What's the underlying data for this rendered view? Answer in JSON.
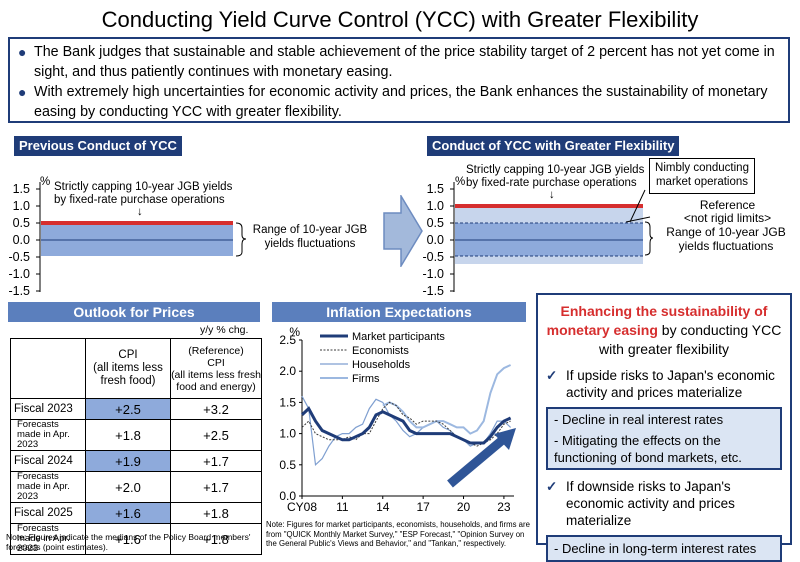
{
  "title": "Conducting Yield Curve Control (YCC) with Greater Flexibility",
  "bullets": [
    "The Bank judges that sustainable and stable achievement of the price stability target of 2 percent has not yet come in sight, and thus patiently continues with monetary easing.",
    "With extremely high uncertainties for economic activity and prices, the Bank enhances the sustainability of monetary easing by conducting YCC with greater flexibility."
  ],
  "previous": {
    "header": "Previous Conduct of YCC",
    "unit": "%",
    "yticks": [
      "1.5",
      "1.0",
      "0.5",
      "0.0",
      "-0.5",
      "-1.0",
      "-1.5"
    ],
    "cap_note_1": "Strictly capping 10-year JGB yields",
    "cap_note_2": "by fixed-rate purchase operations",
    "arrow": "↓",
    "range_1": "Range of 10-year JGB",
    "range_2": "yields fluctuations"
  },
  "new": {
    "header": "Conduct of YCC with Greater Flexibility",
    "unit": "%",
    "yticks": [
      "1.5",
      "1.0",
      "0.5",
      "0.0",
      "-0.5",
      "-1.0",
      "-1.5"
    ],
    "cap_note_1": "Strictly capping 10-year JGB yields",
    "cap_note_2": "by fixed-rate purchase operations",
    "arrow": "↓",
    "nimbly_1": "Nimbly conducting",
    "nimbly_2": "market operations",
    "reference_1": "Reference",
    "reference_2": "<not rigid limits>",
    "range_1": "Range of 10-year JGB",
    "range_2": "yields fluctuations"
  },
  "outlook": {
    "header": "Outlook for Prices",
    "unit": "y/y % chg.",
    "col1": [
      "CPI",
      "(all items less",
      "fresh food)"
    ],
    "col2": [
      "(Reference)",
      "CPI",
      "(all items less fresh",
      "food and energy)"
    ],
    "rows": [
      {
        "label": "Fiscal 2023",
        "v1": "+2.5",
        "v2": "+3.2"
      },
      {
        "label": "Forecasts made in Apr. 2023",
        "v1": "+1.8",
        "v2": "+2.5"
      },
      {
        "label": "Fiscal 2024",
        "v1": "+1.9",
        "v2": "+1.7"
      },
      {
        "label": "Forecasts made in Apr. 2023",
        "v1": "+2.0",
        "v2": "+1.7"
      },
      {
        "label": "Fiscal 2025",
        "v1": "+1.6",
        "v2": "+1.8"
      },
      {
        "label": "Forecasts made in Apr. 2023",
        "v1": "+1.6",
        "v2": "+1.8"
      }
    ],
    "note": "Note: Figures indicate the medians of the Policy Board members' forecasts (point estimates)."
  },
  "inflation": {
    "header": "Inflation Expectations",
    "note": "Note: Figures for market participants, economists, households, and firms are from \"QUICK Monthly Market Survey,\" \"ESP Forecast,\" \"Opinion Survey on the General Public's Views and Behavior,\" and \"Tankan,\" respectively."
  },
  "right_box": {
    "title_red": "Enhancing the sustainability of monetary easing",
    "title_rest": " by conducting YCC with greater flexibility",
    "upside": "If upside risks to Japan's economic activity and prices materialize",
    "upside_items": [
      "- Decline in real interest rates",
      "- Mitigating the effects on the functioning of bond markets, etc."
    ],
    "downside": "If downside risks to Japan's economic activity and prices materialize",
    "downside_items": [
      "- Decline in long-term interest rates"
    ],
    "check": "✓"
  },
  "colors": {
    "navy": "#1f3c78",
    "band": "#5b7fbd",
    "cap_red": "#d62e2e",
    "range_fill": "#8eaadb",
    "highlight": "#8eaadb",
    "market": "#1f3c78",
    "economists": "#3a3a3a",
    "households": "#7f9fd0",
    "firms": "#9cb8e0"
  },
  "chart_data": {
    "type": "line",
    "title": "Inflation Expectations",
    "ylabel": "%",
    "xticks": [
      "CY08",
      "11",
      "14",
      "17",
      "20",
      "23"
    ],
    "ylim": [
      0.0,
      2.5
    ],
    "yticks": [
      "2.5",
      "2.0",
      "1.5",
      "1.0",
      "0.5",
      "0.0"
    ],
    "x_range": [
      2008,
      2023.75
    ],
    "series": [
      {
        "name": "Market participants",
        "x": [
          2008,
          2008.5,
          2009,
          2009.5,
          2010,
          2010.5,
          2011,
          2011.5,
          2012,
          2012.5,
          2013,
          2013.5,
          2014,
          2014.5,
          2015,
          2015.5,
          2016,
          2016.5,
          2017,
          2017.5,
          2018,
          2018.5,
          2019,
          2019.5,
          2020,
          2020.5,
          2021,
          2021.5,
          2022,
          2022.5,
          2023,
          2023.5
        ],
        "y": [
          1.3,
          1.4,
          1.2,
          1.05,
          1.0,
          0.95,
          0.9,
          0.9,
          0.95,
          1.0,
          1.1,
          1.3,
          1.35,
          1.3,
          1.25,
          1.2,
          1.05,
          1.0,
          1.0,
          1.0,
          1.0,
          1.0,
          1.0,
          0.95,
          0.9,
          0.85,
          0.85,
          0.85,
          0.95,
          1.1,
          1.2,
          1.25
        ]
      },
      {
        "name": "Economists",
        "x": [
          2008,
          2008.5,
          2009,
          2009.5,
          2010,
          2010.5,
          2011,
          2011.5,
          2012,
          2012.5,
          2013,
          2013.5,
          2014,
          2014.5,
          2015,
          2015.5,
          2016,
          2016.5,
          2017,
          2017.5,
          2018,
          2018.5,
          2019,
          2019.5,
          2020,
          2020.5,
          2021,
          2021.5,
          2022,
          2022.5,
          2023,
          2023.5
        ],
        "y": [
          1.1,
          1.2,
          1.0,
          0.95,
          0.9,
          0.9,
          0.9,
          0.95,
          0.9,
          1.0,
          1.0,
          1.2,
          1.4,
          1.5,
          1.45,
          1.3,
          1.25,
          1.15,
          1.2,
          1.2,
          1.2,
          1.15,
          1.05,
          0.95,
          0.9,
          0.85,
          0.8,
          0.85,
          0.9,
          1.0,
          1.15,
          1.2
        ]
      },
      {
        "name": "Households",
        "x": [
          2008,
          2008.5,
          2009,
          2009.5,
          2010,
          2010.5,
          2011,
          2011.5,
          2012,
          2012.5,
          2013,
          2013.5,
          2014,
          2014.5,
          2015,
          2015.5,
          2016,
          2016.5,
          2017,
          2017.5,
          2018,
          2018.5,
          2019,
          2019.5,
          2020,
          2020.5,
          2021,
          2021.5,
          2022,
          2022.5,
          2023,
          2023.5
        ],
        "y": [
          1.6,
          1.4,
          0.5,
          0.6,
          0.8,
          0.95,
          1.0,
          1.0,
          1.1,
          1.15,
          1.4,
          1.55,
          1.5,
          1.3,
          1.2,
          1.05,
          0.95,
          1.0,
          1.1,
          1.15,
          1.2,
          1.1,
          1.05,
          0.95,
          0.9,
          0.8,
          0.85,
          0.85,
          1.0,
          1.2,
          1.2,
          1.1
        ]
      },
      {
        "name": "Firms",
        "x": [
          2014,
          2014.5,
          2015,
          2015.5,
          2016,
          2016.5,
          2017,
          2017.5,
          2018,
          2018.5,
          2019,
          2019.5,
          2020,
          2020.5,
          2021,
          2021.5,
          2022,
          2022.5,
          2023,
          2023.5
        ],
        "y": [
          1.45,
          1.5,
          1.45,
          1.35,
          1.2,
          1.1,
          1.1,
          1.15,
          1.2,
          1.2,
          1.15,
          1.1,
          1.1,
          1.0,
          1.05,
          1.2,
          1.65,
          1.95,
          2.05,
          2.1
        ]
      }
    ]
  }
}
